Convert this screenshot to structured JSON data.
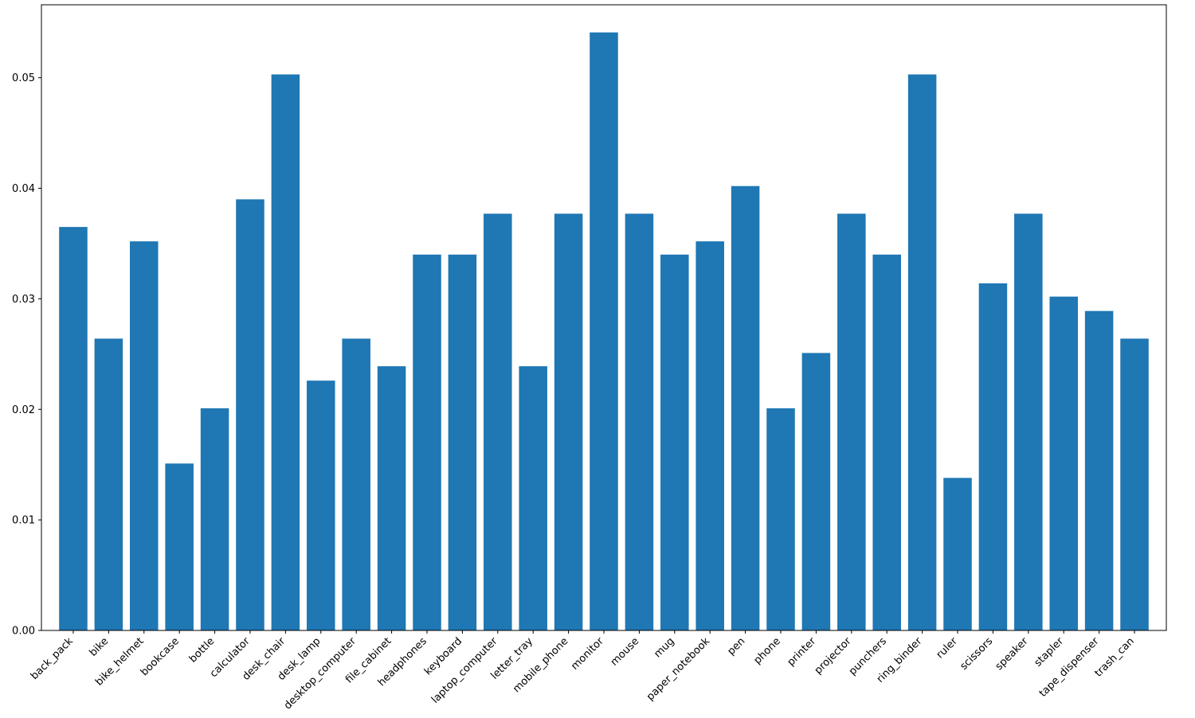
{
  "chart_data": {
    "type": "bar",
    "title": "",
    "xlabel": "",
    "ylabel": "",
    "ylim": [
      0,
      0.0566
    ],
    "yticks": [
      0.0,
      0.01,
      0.02,
      0.03,
      0.04,
      0.05
    ],
    "ytick_labels": [
      "0.00",
      "0.01",
      "0.02",
      "0.03",
      "0.04",
      "0.05"
    ],
    "grid": false,
    "categories": [
      "back_pack",
      "bike",
      "bike_helmet",
      "bookcase",
      "bottle",
      "calculator",
      "desk_chair",
      "desk_lamp",
      "desktop_computer",
      "file_cabinet",
      "headphones",
      "keyboard",
      "laptop_computer",
      "letter_tray",
      "mobile_phone",
      "monitor",
      "mouse",
      "mug",
      "paper_notebook",
      "pen",
      "phone",
      "printer",
      "projector",
      "punchers",
      "ring_binder",
      "ruler",
      "scissors",
      "speaker",
      "stapler",
      "tape_dispenser",
      "trash_can"
    ],
    "values": [
      0.0365,
      0.0264,
      0.0352,
      0.0151,
      0.0201,
      0.039,
      0.0503,
      0.0226,
      0.0264,
      0.0239,
      0.034,
      0.034,
      0.0377,
      0.0239,
      0.0377,
      0.0541,
      0.0377,
      0.034,
      0.0352,
      0.0402,
      0.0201,
      0.0251,
      0.0377,
      0.034,
      0.0503,
      0.0138,
      0.0314,
      0.0377,
      0.0302,
      0.0289,
      0.0264
    ],
    "bar_color": "#1f77b4"
  }
}
